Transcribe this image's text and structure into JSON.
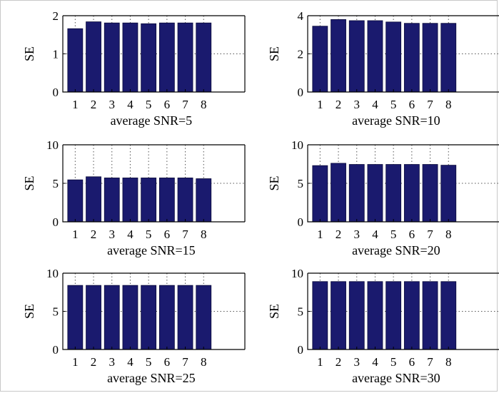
{
  "chart_data": [
    {
      "type": "bar",
      "categories": [
        "1",
        "2",
        "3",
        "4",
        "5",
        "6",
        "7",
        "8"
      ],
      "values": [
        1.66,
        1.84,
        1.81,
        1.81,
        1.79,
        1.81,
        1.81,
        1.81
      ],
      "xlabel": "average SNR=5",
      "ylabel": "SE",
      "ylim": [
        0,
        2
      ],
      "yticks": [
        "0",
        "1",
        "2"
      ],
      "bar_color": "#1a1a6e",
      "grid": "dotted"
    },
    {
      "type": "bar",
      "categories": [
        "1",
        "2",
        "3",
        "4",
        "5",
        "6",
        "7",
        "8"
      ],
      "values": [
        3.45,
        3.8,
        3.74,
        3.74,
        3.67,
        3.6,
        3.6,
        3.6
      ],
      "xlabel": "average SNR=10",
      "ylabel": "SE",
      "ylim": [
        0,
        4
      ],
      "yticks": [
        "0",
        "2",
        "4"
      ],
      "bar_color": "#1a1a6e",
      "grid": "dotted"
    },
    {
      "type": "bar",
      "categories": [
        "1",
        "2",
        "3",
        "4",
        "5",
        "6",
        "7",
        "8"
      ],
      "values": [
        5.45,
        5.85,
        5.7,
        5.7,
        5.7,
        5.7,
        5.7,
        5.6
      ],
      "xlabel": "average SNR=15",
      "ylabel": "SE",
      "ylim": [
        0,
        10
      ],
      "yticks": [
        "0",
        "5",
        "10"
      ],
      "bar_color": "#1a1a6e",
      "grid": "dotted"
    },
    {
      "type": "bar",
      "categories": [
        "1",
        "2",
        "3",
        "4",
        "5",
        "6",
        "7",
        "8"
      ],
      "values": [
        7.3,
        7.6,
        7.45,
        7.45,
        7.45,
        7.45,
        7.45,
        7.35
      ],
      "xlabel": "average SNR=20",
      "ylabel": "SE",
      "ylim": [
        0,
        10
      ],
      "yticks": [
        "0",
        "5",
        "10"
      ],
      "bar_color": "#1a1a6e",
      "grid": "dotted"
    },
    {
      "type": "bar",
      "categories": [
        "1",
        "2",
        "3",
        "4",
        "5",
        "6",
        "7",
        "8"
      ],
      "values": [
        8.4,
        8.4,
        8.4,
        8.4,
        8.4,
        8.4,
        8.4,
        8.4
      ],
      "xlabel": "average SNR=25",
      "ylabel": "SE",
      "ylim": [
        0,
        10
      ],
      "yticks": [
        "0",
        "5",
        "10"
      ],
      "bar_color": "#1a1a6e",
      "grid": "dotted"
    },
    {
      "type": "bar",
      "categories": [
        "1",
        "2",
        "3",
        "4",
        "5",
        "6",
        "7",
        "8"
      ],
      "values": [
        8.9,
        8.9,
        8.9,
        8.9,
        8.9,
        8.9,
        8.9,
        8.9
      ],
      "xlabel": "average SNR=30",
      "ylabel": "SE",
      "ylim": [
        0,
        10
      ],
      "yticks": [
        "0",
        "5",
        "10"
      ],
      "bar_color": "#1a1a6e",
      "grid": "dotted"
    }
  ]
}
